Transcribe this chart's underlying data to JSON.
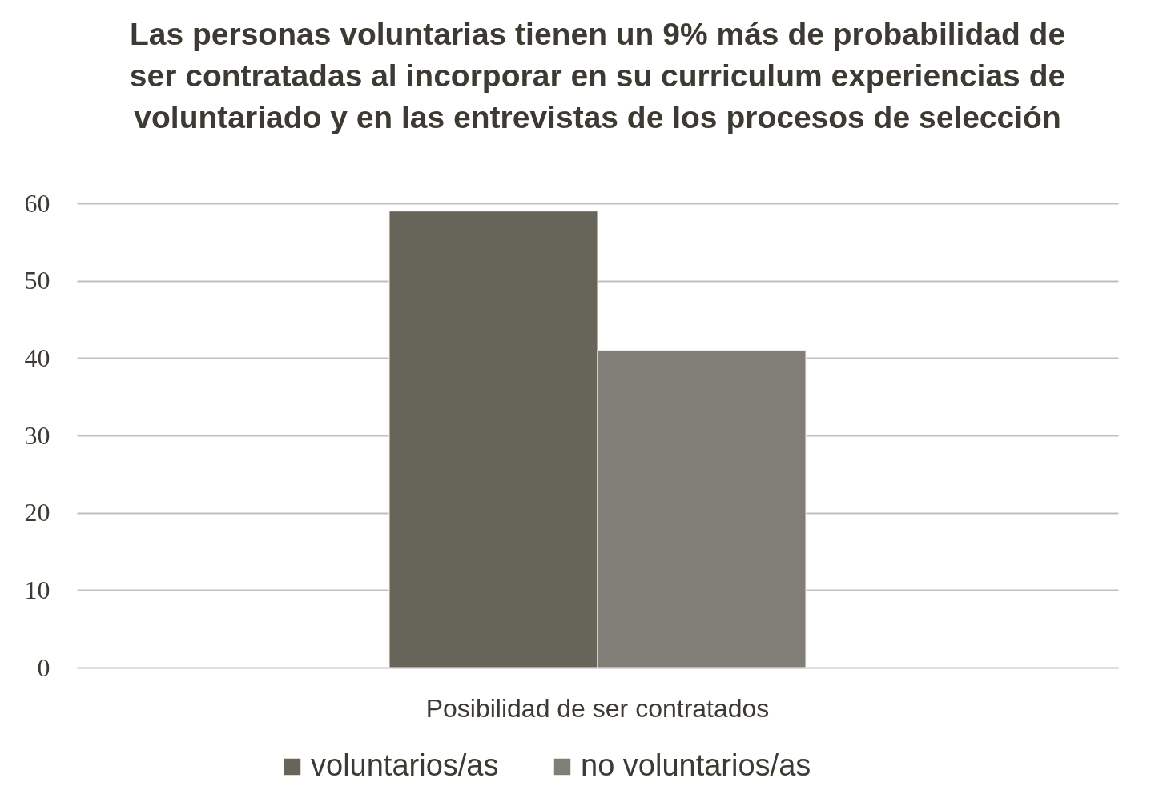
{
  "chart_data": {
    "type": "bar",
    "title": "Las personas voluntarias tienen un 9% más de probabilidad de ser contratadas al incorporar en su curriculum experiencias de voluntariado y en las entrevistas de los procesos de selección",
    "categories": [
      "Posibilidad de ser contratados"
    ],
    "series": [
      {
        "name": "voluntarios/as",
        "color": "#67645a",
        "values": [
          59
        ]
      },
      {
        "name": "no voluntarios/as",
        "color": "#807e76",
        "values": [
          41
        ]
      }
    ],
    "ylim": [
      0,
      60
    ],
    "yticks": [
      0,
      10,
      20,
      30,
      40,
      50,
      60
    ],
    "grid": "y",
    "legend": "bottom"
  }
}
